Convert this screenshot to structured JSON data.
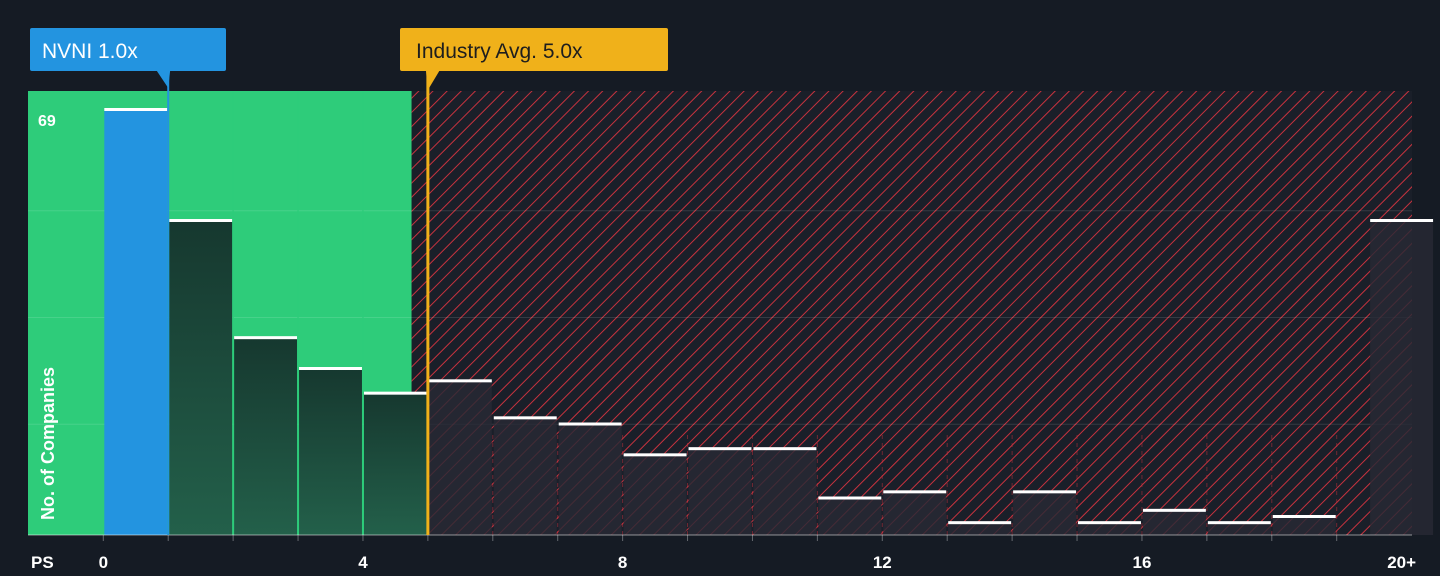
{
  "chart_data": {
    "type": "bar",
    "metric_label": "PS",
    "ylabel": "No. of Companies",
    "ytick_label": "69",
    "ylim": [
      0,
      72
    ],
    "xlim": [
      -1.16,
      20.16
    ],
    "x_ticks": [
      {
        "value": 0,
        "label": "0"
      },
      {
        "value": 4,
        "label": "4"
      },
      {
        "value": 8,
        "label": "8"
      },
      {
        "value": 12,
        "label": "12"
      },
      {
        "value": 16,
        "label": "16"
      },
      {
        "value": 20,
        "label": "20+"
      }
    ],
    "bins": [
      {
        "start": 0,
        "end": 1,
        "value": 69,
        "highlight": true
      },
      {
        "start": 1,
        "end": 2,
        "value": 51
      },
      {
        "start": 2,
        "end": 3,
        "value": 32
      },
      {
        "start": 3,
        "end": 4,
        "value": 27
      },
      {
        "start": 4,
        "end": 5,
        "value": 23
      },
      {
        "start": 5,
        "end": 6,
        "value": 25
      },
      {
        "start": 6,
        "end": 7,
        "value": 19
      },
      {
        "start": 7,
        "end": 8,
        "value": 18
      },
      {
        "start": 8,
        "end": 9,
        "value": 13
      },
      {
        "start": 9,
        "end": 10,
        "value": 14
      },
      {
        "start": 10,
        "end": 11,
        "value": 14
      },
      {
        "start": 11,
        "end": 12,
        "value": 6
      },
      {
        "start": 12,
        "end": 13,
        "value": 7
      },
      {
        "start": 13,
        "end": 14,
        "value": 2
      },
      {
        "start": 14,
        "end": 15,
        "value": 7
      },
      {
        "start": 15,
        "end": 16,
        "value": 2
      },
      {
        "start": 16,
        "end": 17,
        "value": 4
      },
      {
        "start": 17,
        "end": 18,
        "value": 2
      },
      {
        "start": 18,
        "end": 19,
        "value": 3
      },
      {
        "start": 19.5,
        "end": 20.5,
        "value": 51
      }
    ],
    "company": {
      "label": "NVNI 1.0x",
      "value": 1.0,
      "color": "#2394e0"
    },
    "industry_avg": {
      "label": "Industry Avg. 5.0x",
      "value": 5.0,
      "color": "#f0b11a"
    },
    "fair_zone_end": 4.75,
    "colors": {
      "background": "#151b24",
      "undervalued_zone": "#2ecc7a",
      "bar_dark": "#1d4a3b",
      "bar_over": "#2a2d37",
      "hatch": "#c7323e",
      "cap": "#ffffff",
      "axis_text": "#ffffff"
    }
  }
}
